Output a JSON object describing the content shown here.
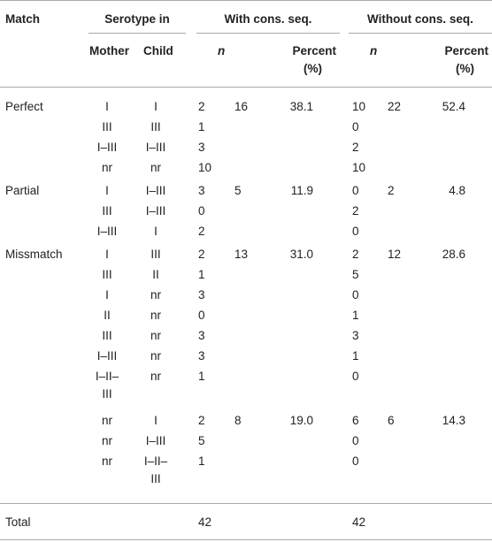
{
  "header": {
    "match": "Match",
    "serotype_in": "Serotype in",
    "mother": "Mother",
    "child": "Child",
    "with_cons": "With cons. seq.",
    "without_cons": "Without cons. seq.",
    "n": "n",
    "percent_line1": "Percent",
    "percent_line2": "(%)"
  },
  "rows": [
    {
      "match": "Perfect",
      "mother": "I",
      "child": "I",
      "n1": "2",
      "sub1": "16",
      "pct1": "38.1",
      "n2": "10",
      "sub2": "22",
      "pct2": "52.4"
    },
    {
      "match": "",
      "mother": "III",
      "child": "III",
      "n1": "1",
      "sub1": "",
      "pct1": "",
      "n2": "0",
      "sub2": "",
      "pct2": ""
    },
    {
      "match": "",
      "mother": "I–III",
      "child": "I–III",
      "n1": "3",
      "sub1": "",
      "pct1": "",
      "n2": "2",
      "sub2": "",
      "pct2": ""
    },
    {
      "match": "",
      "mother": "nr",
      "child": "nr",
      "n1": "10",
      "sub1": "",
      "pct1": "",
      "n2": "10",
      "sub2": "",
      "pct2": ""
    },
    {
      "match": "Partial",
      "mother": "I",
      "child": "I–III",
      "n1": "3",
      "sub1": "5",
      "pct1": "11.9",
      "n2": "0",
      "sub2": "2",
      "pct2": "4.8"
    },
    {
      "match": "",
      "mother": "III",
      "child": "I–III",
      "n1": "0",
      "sub1": "",
      "pct1": "",
      "n2": "2",
      "sub2": "",
      "pct2": ""
    },
    {
      "match": "",
      "mother": "I–III",
      "child": "I",
      "n1": "2",
      "sub1": "",
      "pct1": "",
      "n2": "0",
      "sub2": "",
      "pct2": ""
    },
    {
      "match": "Missmatch",
      "mother": "I",
      "child": "III",
      "n1": "2",
      "sub1": "13",
      "pct1": "31.0",
      "n2": "2",
      "sub2": "12",
      "pct2": "28.6"
    },
    {
      "match": "",
      "mother": "III",
      "child": "II",
      "n1": "1",
      "sub1": "",
      "pct1": "",
      "n2": "5",
      "sub2": "",
      "pct2": ""
    },
    {
      "match": "",
      "mother": "I",
      "child": "nr",
      "n1": "3",
      "sub1": "",
      "pct1": "",
      "n2": "0",
      "sub2": "",
      "pct2": ""
    },
    {
      "match": "",
      "mother": "II",
      "child": "nr",
      "n1": "0",
      "sub1": "",
      "pct1": "",
      "n2": "1",
      "sub2": "",
      "pct2": ""
    },
    {
      "match": "",
      "mother": "III",
      "child": "nr",
      "n1": "3",
      "sub1": "",
      "pct1": "",
      "n2": "3",
      "sub2": "",
      "pct2": ""
    },
    {
      "match": "",
      "mother": "I–III",
      "child": "nr",
      "n1": "3",
      "sub1": "",
      "pct1": "",
      "n2": "1",
      "sub2": "",
      "pct2": ""
    },
    {
      "match": "",
      "mother": [
        "I–II–",
        "III"
      ],
      "child": "nr",
      "n1": "1",
      "sub1": "",
      "pct1": "",
      "n2": "0",
      "sub2": "",
      "pct2": ""
    },
    {
      "match": "",
      "mother": "nr",
      "child": "I",
      "n1": "2",
      "sub1": "8",
      "pct1": "19.0",
      "n2": "6",
      "sub2": "6",
      "pct2": "14.3"
    },
    {
      "match": "",
      "mother": "nr",
      "child": "I–III",
      "n1": "5",
      "sub1": "",
      "pct1": "",
      "n2": "0",
      "sub2": "",
      "pct2": ""
    },
    {
      "match": "",
      "mother": "nr",
      "child": [
        "I–II–",
        "III"
      ],
      "n1": "1",
      "sub1": "",
      "pct1": "",
      "n2": "0",
      "sub2": "",
      "pct2": ""
    }
  ],
  "total": {
    "label": "Total",
    "n1": "42",
    "n2": "42"
  }
}
